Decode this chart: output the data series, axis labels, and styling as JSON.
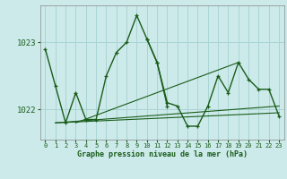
{
  "title": "Graphe pression niveau de la mer (hPa)",
  "background_color": "#cceaea",
  "grid_color": "#aad4d4",
  "line_color": "#1a5c1a",
  "xlim": [
    -0.5,
    23.5
  ],
  "ylim": [
    1021.55,
    1023.55
  ],
  "yticks": [
    1022,
    1023
  ],
  "xticks": [
    0,
    1,
    2,
    3,
    4,
    5,
    6,
    7,
    8,
    9,
    10,
    11,
    12,
    13,
    14,
    15,
    16,
    17,
    18,
    19,
    20,
    21,
    22,
    23
  ],
  "s1": [
    1022.9,
    1022.35,
    1021.8,
    1022.25,
    1021.85,
    1021.85,
    1022.5,
    1022.85,
    1023.0,
    1023.4,
    1023.05,
    1022.7,
    1022.05,
    null,
    null,
    null,
    null,
    null,
    null,
    null,
    null,
    null,
    null,
    null
  ],
  "s2": [
    null,
    null,
    null,
    null,
    null,
    null,
    null,
    null,
    null,
    null,
    1023.05,
    1022.7,
    1022.1,
    1022.05,
    1021.75,
    1021.75,
    1022.05,
    1022.5,
    1022.25,
    1022.7,
    1022.45,
    1022.3,
    1022.3,
    1021.9
  ],
  "trend1_x": [
    1,
    23
  ],
  "trend1_y": [
    1021.8,
    1021.95
  ],
  "trend2_x": [
    1,
    23
  ],
  "trend2_y": [
    1021.8,
    1022.05
  ],
  "trend3_x": [
    3,
    19
  ],
  "trend3_y": [
    1021.8,
    1022.7
  ]
}
